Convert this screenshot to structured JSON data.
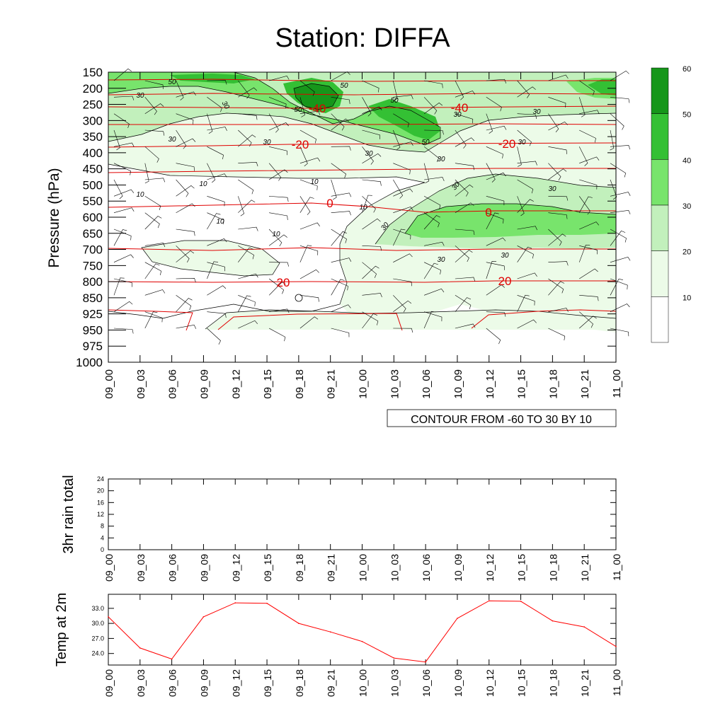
{
  "title": "Station: DIFFA",
  "chart_data": [
    {
      "id": "profile",
      "type": "contour",
      "title": "Station: DIFFA",
      "ylabel": "Pressure (hPa)",
      "y_ticks": [
        "150",
        "200",
        "250",
        "300",
        "350",
        "400",
        "450",
        "500",
        "550",
        "600",
        "650",
        "700",
        "750",
        "800",
        "850",
        "925",
        "950",
        "975",
        "1000"
      ],
      "x_ticks": [
        "09_00",
        "09_03",
        "09_06",
        "09_09",
        "09_12",
        "09_15",
        "09_18",
        "09_21",
        "10_00",
        "10_03",
        "10_06",
        "10_09",
        "10_12",
        "10_15",
        "10_18",
        "10_21",
        "11_00"
      ],
      "info_label": "CONTOUR FROM -60 TO 30 BY 10",
      "colorbar": {
        "labels": [
          "10",
          "20",
          "30",
          "40",
          "50",
          "60"
        ],
        "colors": [
          "#ffffff",
          "#ecfbe8",
          "#c2f0bc",
          "#78e46c",
          "#34c034",
          "#16961a"
        ]
      },
      "temperature_contours": [
        {
          "label": "-40",
          "level": -40
        },
        {
          "label": "-20",
          "level": -20
        },
        {
          "label": "0",
          "level": 0
        },
        {
          "label": "20",
          "level": 20
        }
      ],
      "wind_labels": [
        "10",
        "30",
        "50"
      ],
      "contour_color_temp": "#e00000"
    },
    {
      "id": "rain",
      "type": "line",
      "ylabel": "3hr rain total",
      "y_ticks": [
        "0",
        "4",
        "8",
        "12",
        "16",
        "20",
        "24"
      ],
      "ylim": [
        0,
        24
      ],
      "x_ticks": [
        "09_00",
        "09_03",
        "09_06",
        "09_09",
        "09_12",
        "09_15",
        "09_18",
        "09_21",
        "10_00",
        "10_03",
        "10_06",
        "10_09",
        "10_12",
        "10_15",
        "10_18",
        "10_21",
        "11_00"
      ],
      "values": []
    },
    {
      "id": "temp",
      "type": "line",
      "ylabel": "Temp at 2m",
      "y_ticks": [
        "24.0",
        "27.0",
        "30.0",
        "33.0"
      ],
      "ylim": [
        21.7,
        35.8
      ],
      "x_ticks": [
        "09_00",
        "09_03",
        "09_06",
        "09_09",
        "09_12",
        "09_15",
        "09_18",
        "09_21",
        "10_00",
        "10_03",
        "10_06",
        "10_09",
        "10_12",
        "10_15",
        "10_18",
        "10_21",
        "11_00"
      ],
      "values": [
        31.3,
        25.1,
        22.9,
        31.3,
        34.1,
        34.0,
        30.0,
        28.3,
        26.4,
        23.1,
        22.3,
        31.0,
        34.5,
        34.4,
        30.5,
        29.3,
        25.4
      ],
      "line_color": "#ff0000"
    }
  ]
}
